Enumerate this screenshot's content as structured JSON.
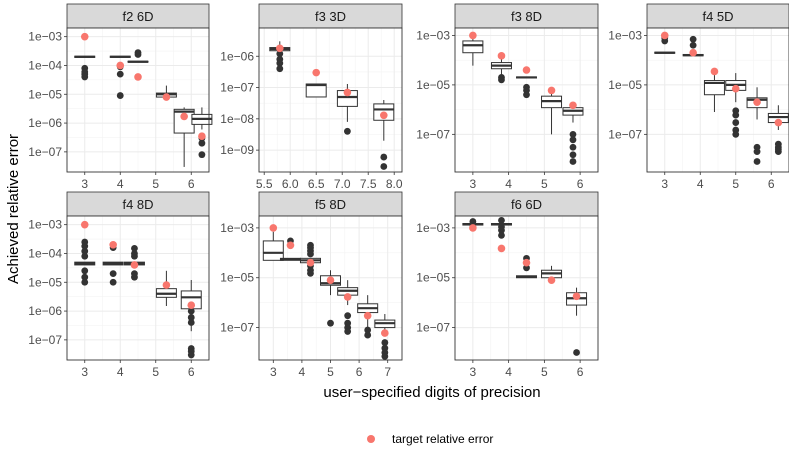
{
  "figure": {
    "ylabel": "Achieved relative error",
    "xlabel": "user−specified digits of precision",
    "legend": {
      "label": "target relative error",
      "color": "#F8766D",
      "position": "bottom"
    },
    "colors": {
      "box": "#333333",
      "point": "#333333",
      "target": "#F8766D",
      "strip": "#D9D9D9",
      "grid_major": "#EBEBEB",
      "grid_minor": "#F3F3F3"
    }
  },
  "chart_data": [
    {
      "type": "boxplot",
      "title": "f2 6D",
      "yscale": "log10",
      "ylim": [
        2e-08,
        0.002
      ],
      "xlim": [
        2.5,
        6.5
      ],
      "xticks": [
        3,
        4,
        5,
        6
      ],
      "xtick_labels": [
        "3",
        "4",
        "5",
        "6"
      ],
      "yticks": [
        0.001,
        0.0001,
        1e-05,
        1e-06,
        1e-07
      ],
      "ytick_labels": [
        "1e−03",
        "1e−04",
        "1e−05",
        "1e−06",
        "1e−07"
      ],
      "boxes": [
        {
          "x": 3,
          "q1": 0.00019,
          "median": 0.0002,
          "q3": 0.00021,
          "lower": 0.00019,
          "upper": 0.00021,
          "outliers": [
            8e-05,
            6e-05,
            5e-05,
            4e-05
          ]
        },
        {
          "x": 4,
          "q1": 0.00019,
          "median": 0.0002,
          "q3": 0.00021,
          "lower": 0.00019,
          "upper": 0.00021,
          "outliers": [
            9e-05,
            5e-05,
            9e-06
          ]
        },
        {
          "x": 4.5,
          "q1": 0.00013,
          "median": 0.000135,
          "q3": 0.00014,
          "lower": 0.00013,
          "upper": 0.00014,
          "outliers": [
            0.00028,
            0.00024
          ]
        },
        {
          "x": 5.3,
          "q1": 8e-06,
          "median": 1e-05,
          "q3": 1.1e-05,
          "lower": 7e-06,
          "upper": 2e-05,
          "outliers": []
        },
        {
          "x": 5.8,
          "q1": 4.5e-07,
          "median": 2.5e-06,
          "q3": 3e-06,
          "lower": 3e-08,
          "upper": 3.5e-06,
          "outliers": []
        },
        {
          "x": 6.3,
          "q1": 9e-07,
          "median": 1.4e-06,
          "q3": 2e-06,
          "lower": 6e-07,
          "upper": 3.5e-06,
          "outliers": [
            3e-07,
            2e-07,
            8e-08
          ]
        }
      ],
      "targets": [
        {
          "x": 3,
          "y": 0.001
        },
        {
          "x": 4,
          "y": 0.0001
        },
        {
          "x": 4.5,
          "y": 4e-05
        },
        {
          "x": 5.3,
          "y": 8e-06
        },
        {
          "x": 5.8,
          "y": 1.7e-06
        },
        {
          "x": 6.3,
          "y": 3.5e-07
        }
      ]
    },
    {
      "type": "boxplot",
      "title": "f3 3D",
      "yscale": "log10",
      "ylim": [
        2e-10,
        8e-06
      ],
      "xlim": [
        5.4,
        8.15
      ],
      "xticks": [
        5.5,
        6.0,
        6.5,
        7.0,
        7.5,
        8.0
      ],
      "xtick_labels": [
        "5.5",
        "6.0",
        "6.5",
        "7.0",
        "7.5",
        "8.0"
      ],
      "yticks": [
        1e-06,
        1e-07,
        1e-08,
        1e-09
      ],
      "ytick_labels": [
        "1e−06",
        "1e−07",
        "1e−08",
        "1e−09"
      ],
      "boxes": [
        {
          "x": 5.8,
          "q1": 1.5e-06,
          "median": 1.7e-06,
          "q3": 1.9e-06,
          "lower": 1.5e-06,
          "upper": 3e-06,
          "outliers": [
            1.2e-06,
            8e-07,
            6e-07,
            4e-07
          ]
        },
        {
          "x": 6.5,
          "q1": 5e-08,
          "median": 1.2e-07,
          "q3": 1.3e-07,
          "lower": 5e-08,
          "upper": 1.3e-07,
          "outliers": []
        },
        {
          "x": 7.1,
          "q1": 2.5e-08,
          "median": 5e-08,
          "q3": 8e-08,
          "lower": 8e-09,
          "upper": 1.3e-07,
          "outliers": [
            4e-09
          ]
        },
        {
          "x": 7.8,
          "q1": 9e-09,
          "median": 2e-08,
          "q3": 3e-08,
          "lower": 2e-09,
          "upper": 4e-08,
          "outliers": [
            6e-10,
            3e-10
          ]
        }
      ],
      "targets": [
        {
          "x": 5.8,
          "y": 1.8e-06
        },
        {
          "x": 6.5,
          "y": 3e-07
        },
        {
          "x": 7.1,
          "y": 7e-08
        },
        {
          "x": 7.8,
          "y": 1.3e-08
        }
      ]
    },
    {
      "type": "boxplot",
      "title": "f3 8D",
      "yscale": "log10",
      "ylim": [
        3e-09,
        0.002
      ],
      "xlim": [
        2.5,
        6.5
      ],
      "xticks": [
        3,
        4,
        5,
        6
      ],
      "xtick_labels": [
        "3",
        "4",
        "5",
        "6"
      ],
      "yticks": [
        0.001,
        1e-05,
        1e-07
      ],
      "ytick_labels": [
        "1e−03",
        "1e−05",
        "1e−07"
      ],
      "boxes": [
        {
          "x": 3,
          "q1": 0.0002,
          "median": 0.0004,
          "q3": 0.0006,
          "lower": 6e-05,
          "upper": 0.001,
          "outliers": []
        },
        {
          "x": 3.8,
          "q1": 4.5e-05,
          "median": 6e-05,
          "q3": 8e-05,
          "lower": 2.5e-05,
          "upper": 0.00013,
          "outliers": [
            2e-05,
            1.6e-05
          ]
        },
        {
          "x": 4.5,
          "q1": 1.9e-05,
          "median": 2e-05,
          "q3": 2.1e-05,
          "lower": 1.9e-05,
          "upper": 2.1e-05,
          "outliers": [
            8e-06,
            6e-06,
            4e-06
          ]
        },
        {
          "x": 5.2,
          "q1": 1.2e-06,
          "median": 2.2e-06,
          "q3": 3.5e-06,
          "lower": 1e-07,
          "upper": 5e-06,
          "outliers": []
        },
        {
          "x": 5.8,
          "q1": 6e-07,
          "median": 9e-07,
          "q3": 1.2e-06,
          "lower": 3e-07,
          "upper": 2e-06,
          "outliers": [
            1e-07,
            6e-08,
            3e-08,
            1.5e-08,
            8e-09
          ]
        }
      ],
      "targets": [
        {
          "x": 3,
          "y": 0.001
        },
        {
          "x": 3.8,
          "y": 0.00015
        },
        {
          "x": 4.5,
          "y": 4e-05
        },
        {
          "x": 5.2,
          "y": 6e-06
        },
        {
          "x": 5.8,
          "y": 1.5e-06
        }
      ]
    },
    {
      "type": "boxplot",
      "title": "f4 5D",
      "yscale": "log10",
      "ylim": [
        3e-09,
        0.002
      ],
      "xlim": [
        2.5,
        6.5
      ],
      "xticks": [
        3,
        4,
        5,
        6
      ],
      "xtick_labels": [
        "3",
        "4",
        "5",
        "6"
      ],
      "yticks": [
        0.001,
        1e-05,
        1e-07
      ],
      "ytick_labels": [
        "1e−03",
        "1e−05",
        "1e−07"
      ],
      "boxes": [
        {
          "x": 3,
          "q1": 0.00019,
          "median": 0.0002,
          "q3": 0.00021,
          "lower": 0.00019,
          "upper": 0.00021,
          "outliers": [
            0.0008,
            0.0006
          ]
        },
        {
          "x": 3.8,
          "q1": 0.00015,
          "median": 0.00016,
          "q3": 0.00017,
          "lower": 0.00015,
          "upper": 0.00017,
          "outliers": [
            0.0007,
            0.0004
          ]
        },
        {
          "x": 4.4,
          "q1": 4e-06,
          "median": 1.2e-05,
          "q3": 1.5e-05,
          "lower": 8e-07,
          "upper": 2.5e-05,
          "outliers": []
        },
        {
          "x": 5,
          "q1": 6e-06,
          "median": 1e-05,
          "q3": 1.5e-05,
          "lower": 2e-06,
          "upper": 3e-05,
          "outliers": [
            9e-07,
            6e-07,
            3e-07,
            1.5e-07,
            1e-07
          ]
        },
        {
          "x": 5.6,
          "q1": 1.2e-06,
          "median": 2.5e-06,
          "q3": 3e-06,
          "lower": 4e-07,
          "upper": 8e-06,
          "outliers": [
            3e-08,
            2e-08,
            8e-09
          ]
        },
        {
          "x": 6.2,
          "q1": 3e-07,
          "median": 5e-07,
          "q3": 7e-07,
          "lower": 1.5e-07,
          "upper": 1.5e-06,
          "outliers": [
            4e-08,
            3e-08,
            2.5e-08,
            2e-08
          ]
        }
      ],
      "targets": [
        {
          "x": 3,
          "y": 0.001
        },
        {
          "x": 3.8,
          "y": 0.0002
        },
        {
          "x": 4.4,
          "y": 3.5e-05
        },
        {
          "x": 5,
          "y": 7e-06
        },
        {
          "x": 5.6,
          "y": 2e-06
        },
        {
          "x": 6.2,
          "y": 3e-07
        }
      ]
    },
    {
      "type": "boxplot",
      "title": "f4 8D",
      "yscale": "log10",
      "ylim": [
        2e-08,
        0.002
      ],
      "xlim": [
        2.5,
        6.5
      ],
      "xticks": [
        3,
        4,
        5,
        6
      ],
      "xtick_labels": [
        "3",
        "4",
        "5",
        "6"
      ],
      "yticks": [
        0.001,
        0.0001,
        1e-05,
        1e-06,
        1e-07
      ],
      "ytick_labels": [
        "1e−03",
        "1e−04",
        "1e−05",
        "1e−06",
        "1e−07"
      ],
      "boxes": [
        {
          "x": 3,
          "q1": 4e-05,
          "median": 4.5e-05,
          "q3": 5e-05,
          "lower": 4e-05,
          "upper": 5e-05,
          "outliers": [
            0.00025,
            0.00018,
            0.00012,
            8e-05,
            2.5e-05,
            1.5e-05,
            1e-05
          ]
        },
        {
          "x": 3.8,
          "q1": 4e-05,
          "median": 4.5e-05,
          "q3": 5e-05,
          "lower": 4e-05,
          "upper": 5e-05,
          "outliers": [
            0.0002,
            0.00016,
            2e-05,
            1e-05
          ]
        },
        {
          "x": 4.4,
          "q1": 4e-05,
          "median": 4.5e-05,
          "q3": 5e-05,
          "lower": 4e-05,
          "upper": 5e-05,
          "outliers": [
            0.00015,
            0.0001,
            8e-05,
            2e-05,
            1.5e-05
          ]
        },
        {
          "x": 5.3,
          "q1": 3e-06,
          "median": 4e-06,
          "q3": 6e-06,
          "lower": 1.5e-06,
          "upper": 2.5e-05,
          "outliers": []
        },
        {
          "x": 6,
          "q1": 1.2e-06,
          "median": 3e-06,
          "q3": 5e-06,
          "lower": 2e-07,
          "upper": 1.2e-05,
          "outliers": [
            1e-06,
            6e-07,
            4e-07,
            5e-08,
            4e-08,
            3e-08
          ]
        }
      ],
      "targets": [
        {
          "x": 3,
          "y": 0.001
        },
        {
          "x": 3.8,
          "y": 0.0002
        },
        {
          "x": 4.4,
          "y": 4e-05
        },
        {
          "x": 5.3,
          "y": 8e-06
        },
        {
          "x": 6,
          "y": 1.6e-06
        }
      ]
    },
    {
      "type": "boxplot",
      "title": "f5 8D",
      "yscale": "log10",
      "ylim": [
        5e-09,
        0.003
      ],
      "xlim": [
        2.5,
        7.5
      ],
      "xticks": [
        3,
        4,
        5,
        6,
        7
      ],
      "xtick_labels": [
        "3",
        "4",
        "5",
        "6",
        "7"
      ],
      "yticks": [
        0.001,
        1e-05,
        1e-07
      ],
      "ytick_labels": [
        "1e−03",
        "1e−05",
        "1e−07"
      ],
      "boxes": [
        {
          "x": 3,
          "q1": 5e-05,
          "median": 0.0001,
          "q3": 0.0003,
          "lower": 5e-05,
          "upper": 0.0007,
          "outliers": []
        },
        {
          "x": 3.6,
          "q1": 5e-05,
          "median": 5.5e-05,
          "q3": 6e-05,
          "lower": 5e-05,
          "upper": 6e-05,
          "outliers": [
            0.0003,
            0.0002
          ]
        },
        {
          "x": 4.3,
          "q1": 4e-05,
          "median": 5e-05,
          "q3": 6e-05,
          "lower": 4e-05,
          "upper": 6e-05,
          "outliers": [
            0.0002,
            0.00016,
            0.00012,
            9e-05,
            3e-05,
            2e-05,
            1.5e-05
          ]
        },
        {
          "x": 5,
          "q1": 5e-06,
          "median": 6e-06,
          "q3": 1.2e-05,
          "lower": 2e-06,
          "upper": 2e-05,
          "outliers": [
            1.5e-07
          ]
        },
        {
          "x": 5.6,
          "q1": 2e-06,
          "median": 3e-06,
          "q3": 4e-06,
          "lower": 8e-07,
          "upper": 8e-06,
          "outliers": [
            3e-07,
            1.5e-07,
            1e-07,
            7e-08
          ]
        },
        {
          "x": 6.3,
          "q1": 4e-07,
          "median": 6e-07,
          "q3": 9e-07,
          "lower": 1e-07,
          "upper": 2e-06,
          "outliers": [
            8e-08,
            5e-08
          ]
        },
        {
          "x": 6.9,
          "q1": 1e-07,
          "median": 1.5e-07,
          "q3": 2e-07,
          "lower": 5e-08,
          "upper": 3.5e-07,
          "outliers": [
            2.5e-08,
            1.5e-08,
            1e-08,
            7e-09
          ]
        }
      ],
      "targets": [
        {
          "x": 3,
          "y": 0.001
        },
        {
          "x": 3.6,
          "y": 0.0002
        },
        {
          "x": 4.3,
          "y": 4e-05
        },
        {
          "x": 5,
          "y": 8e-06
        },
        {
          "x": 5.6,
          "y": 1.7e-06
        },
        {
          "x": 6.3,
          "y": 3e-07
        },
        {
          "x": 6.9,
          "y": 6e-08
        }
      ]
    },
    {
      "type": "boxplot",
      "title": "f6 6D",
      "yscale": "log10",
      "ylim": [
        5e-09,
        0.003
      ],
      "xlim": [
        2.5,
        6.5
      ],
      "xticks": [
        3,
        4,
        5,
        6
      ],
      "xtick_labels": [
        "3",
        "4",
        "5",
        "6"
      ],
      "yticks": [
        0.001,
        1e-05,
        1e-07
      ],
      "ytick_labels": [
        "1e−03",
        "1e−05",
        "1e−07"
      ],
      "boxes": [
        {
          "x": 3,
          "q1": 0.0013,
          "median": 0.0014,
          "q3": 0.0015,
          "lower": 0.0013,
          "upper": 0.0015,
          "outliers": [
            0.0018,
            0.0011
          ]
        },
        {
          "x": 3.8,
          "q1": 0.0013,
          "median": 0.0014,
          "q3": 0.0015,
          "lower": 0.0013,
          "upper": 0.0015,
          "outliers": [
            0.002,
            0.0011,
            0.0008,
            0.0005
          ]
        },
        {
          "x": 4.5,
          "q1": 1e-05,
          "median": 1.1e-05,
          "q3": 1.2e-05,
          "lower": 1e-05,
          "upper": 1.2e-05,
          "outliers": [
            6e-05,
            4e-05,
            2.5e-05
          ]
        },
        {
          "x": 5.2,
          "q1": 1e-05,
          "median": 1.5e-05,
          "q3": 2e-05,
          "lower": 8e-06,
          "upper": 3e-05,
          "outliers": []
        },
        {
          "x": 5.9,
          "q1": 8e-07,
          "median": 1.5e-06,
          "q3": 2.5e-06,
          "lower": 3e-07,
          "upper": 4e-06,
          "outliers": [
            1e-08
          ]
        }
      ],
      "targets": [
        {
          "x": 3,
          "y": 0.001
        },
        {
          "x": 3.8,
          "y": 0.00015
        },
        {
          "x": 4.5,
          "y": 4e-05
        },
        {
          "x": 5.2,
          "y": 8e-06
        },
        {
          "x": 5.9,
          "y": 1.8e-06
        }
      ]
    }
  ]
}
